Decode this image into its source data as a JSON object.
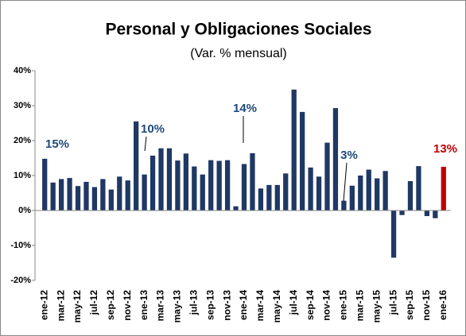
{
  "chart_data": {
    "type": "bar",
    "title": "Personal y Obligaciones Sociales",
    "subtitle": "(Var. % mensual)",
    "categories": [
      "ene-12",
      null,
      "mar-12",
      null,
      "may-12",
      null,
      "jul-12",
      null,
      "sep-12",
      null,
      "nov-12",
      null,
      "ene-13",
      null,
      "mar-13",
      null,
      "may-13",
      null,
      "jul-13",
      null,
      "sep-13",
      null,
      "nov-13",
      null,
      "ene-14",
      null,
      "mar-14",
      null,
      "may-14",
      null,
      "jul-14",
      null,
      "sep-14",
      null,
      "nov-14",
      null,
      "ene-15",
      null,
      "mar-15",
      null,
      "may-15",
      null,
      "jul-15",
      null,
      "sep-15",
      null,
      "nov-15",
      null,
      "ene-16"
    ],
    "values": [
      14.8,
      8,
      9,
      9.3,
      7,
      8.2,
      6.7,
      9,
      6,
      9.7,
      8.6,
      25.5,
      10.3,
      15.7,
      17.8,
      17.8,
      14.3,
      16.3,
      12.6,
      10.3,
      14.4,
      14.2,
      14.4,
      1.2,
      13.3,
      16.4,
      6.3,
      7.3,
      7.3,
      10.6,
      34.6,
      28.2,
      12.3,
      9.7,
      19.4,
      29.3,
      2.8,
      7.1,
      10,
      11.7,
      9.2,
      11.3,
      -13.5,
      -1.3,
      8.4,
      12.7,
      -1.6,
      -2.2,
      12.5
    ],
    "color": "#1f3864",
    "highlight_color": "#c00000",
    "ylim": [
      -20,
      40
    ],
    "yticks": [
      {
        "value": -20,
        "label": "-20%"
      },
      {
        "value": -10,
        "label": "-10%"
      },
      {
        "value": 0,
        "label": "0%"
      },
      {
        "value": 10,
        "label": "10%"
      },
      {
        "value": 20,
        "label": "20%"
      },
      {
        "value": 30,
        "label": "30%"
      },
      {
        "value": 40,
        "label": "40%"
      }
    ],
    "annotations": [
      {
        "text": "15%",
        "color": "#1f497d"
      },
      {
        "text": "10%",
        "color": "#1f497d"
      },
      {
        "text": "14%",
        "color": "#1f497d"
      },
      {
        "text": "3%",
        "color": "#1f497d"
      },
      {
        "text": "13%",
        "color": "#c00000"
      }
    ],
    "grid": false
  }
}
